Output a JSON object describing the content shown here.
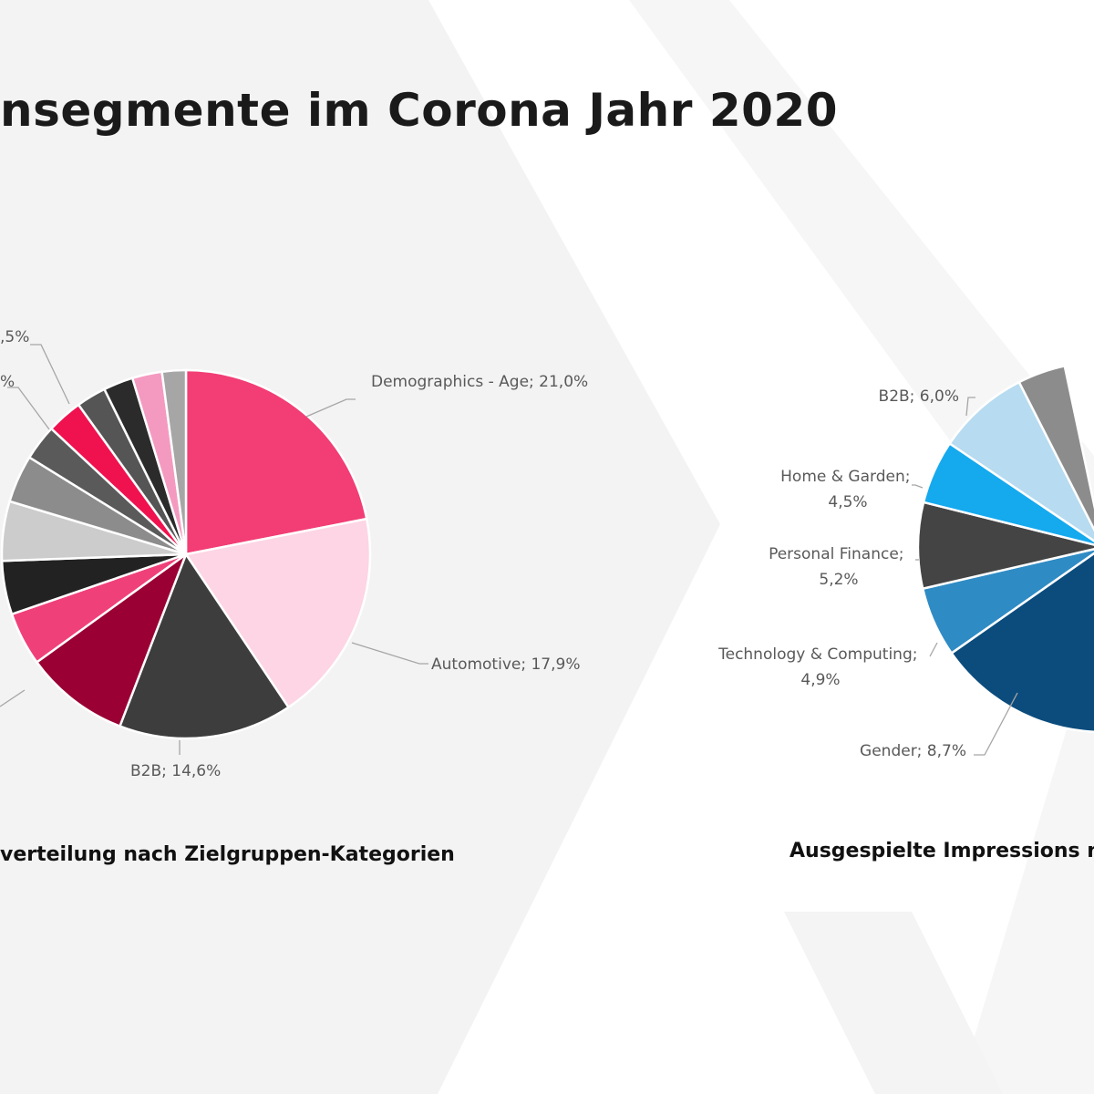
{
  "title": "nsegmente im Corona Jahr 2020",
  "colors": {
    "background_panel": "#f2f2f2",
    "text": "#595959",
    "title": "#1a1a1a"
  },
  "charts": {
    "left": {
      "caption": "verteilung nach Zielgruppen-Kategorien",
      "labels": [
        {
          "text": "Demographics - Age; 21,0%"
        },
        {
          "text": "Automotive; 17,9%"
        },
        {
          "text": "B2B; 14,6%"
        },
        {
          "text": ",5%"
        },
        {
          "text": "%"
        }
      ]
    },
    "right": {
      "caption": "Ausgespielte Impressions n",
      "labels": [
        {
          "lines": [
            "B2B; 6,0%"
          ]
        },
        {
          "lines": [
            "Home & Garden;",
            "4,5%"
          ]
        },
        {
          "lines": [
            "Personal Finance;",
            "5,2%"
          ]
        },
        {
          "lines": [
            "Technology & Computing;",
            "4,9%"
          ]
        },
        {
          "lines": [
            "Gender; 8,7%"
          ]
        }
      ]
    }
  },
  "chart_data": [
    {
      "type": "pie",
      "title": "",
      "slices": [
        {
          "label": "Demographics - Age",
          "value": 21.0,
          "color": "#f23d75"
        },
        {
          "label": "Automotive",
          "value": 17.9,
          "color": "#fdd5e4"
        },
        {
          "label": "B2B",
          "value": 14.6,
          "color": "#3d3d3d"
        },
        {
          "label": "",
          "value": 8.8,
          "color": "#9a0033"
        },
        {
          "label": "",
          "value": 4.5,
          "color": "#f0407a"
        },
        {
          "label": "",
          "value": 4.5,
          "color": "#222222"
        },
        {
          "label": "",
          "value": 5.0,
          "color": "#cccccc"
        },
        {
          "label": "",
          "value": 4.0,
          "color": "#8c8c8c"
        },
        {
          "label": "",
          "value": 3.0,
          "color": "#5a5a5a"
        },
        {
          "label": "",
          "value": 3.0,
          "color": "#f0124f"
        },
        {
          "label": "",
          "value": 2.5,
          "color": "#555555"
        },
        {
          "label": "",
          "value": 2.5,
          "color": "#2b2b2b"
        },
        {
          "label": "",
          "value": 2.5,
          "color": "#f49ac0"
        },
        {
          "label": "",
          "value": 2.0,
          "color": "#a6a6a6"
        }
      ]
    },
    {
      "type": "pie",
      "title": "",
      "partial": true,
      "slices": [
        {
          "label": "",
          "value": null,
          "color": "#0e6fae"
        },
        {
          "label": "Gender",
          "value": 8.7,
          "color": "#0b4c7d"
        },
        {
          "label": "Technology & Computing",
          "value": 4.9,
          "color": "#2f8bc4"
        },
        {
          "label": "Personal Finance",
          "value": 5.2,
          "color": "#444444"
        },
        {
          "label": "Home & Garden",
          "value": 4.5,
          "color": "#15a9ee"
        },
        {
          "label": "B2B",
          "value": 6.0,
          "color": "#b7dbf0"
        },
        {
          "label": "",
          "value": null,
          "color": "#8c8c8c"
        }
      ]
    }
  ]
}
